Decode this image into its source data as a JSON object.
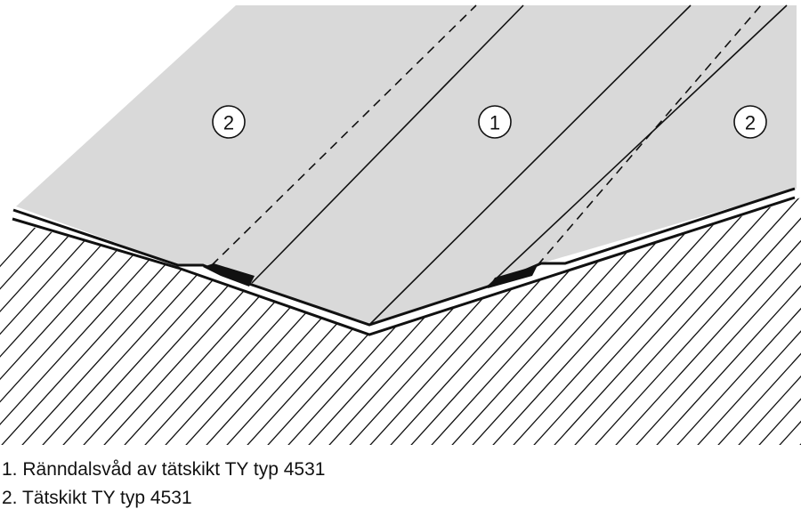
{
  "diagram": {
    "callouts": [
      {
        "id": "left",
        "label": "2"
      },
      {
        "id": "center",
        "label": "1"
      },
      {
        "id": "right",
        "label": "2"
      }
    ]
  },
  "legend": [
    "1. Ränndalsvåd av tätskikt TY typ 4531",
    "2. Tätskikt TY typ 4531"
  ],
  "colors": {
    "membrane": "#d9d9d9",
    "line": "#111111",
    "background": "#ffffff"
  }
}
